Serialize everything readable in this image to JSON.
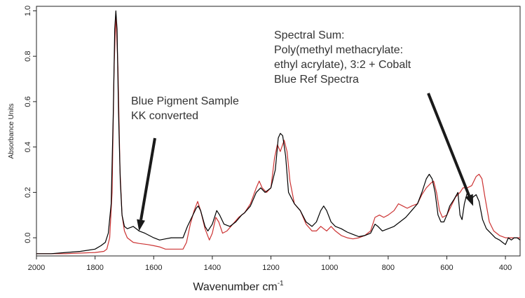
{
  "chart_data": {
    "type": "line",
    "xlabel": "Wavenumber cm",
    "xlabel_superscript": "-1",
    "ylabel": "Absorbance Units",
    "xlim": [
      2000,
      350
    ],
    "ylim": [
      -0.08,
      1.02
    ],
    "x_reversed": true,
    "grid": false,
    "x_ticks": [
      2000,
      1800,
      1600,
      1400,
      1200,
      1000,
      800,
      600,
      400
    ],
    "y_ticks": [
      0.0,
      0.2,
      0.4,
      0.6,
      0.8,
      1.0
    ],
    "x_tick_labels": [
      "2000",
      "1800",
      "1600",
      "1400",
      "1200",
      "1000",
      "800",
      "600",
      "400"
    ],
    "y_tick_labels": [
      "0.0",
      "0.2",
      "0.4",
      "0.6",
      "0.8",
      "1.0"
    ],
    "annotations": [
      {
        "lines": [
          "Blue Pigment Sample",
          "KK converted"
        ],
        "arrow_to": [
          1650,
          0.03
        ]
      },
      {
        "lines": [
          "Spectral Sum:",
          "Poly(methyl methacrylate:",
          "ethyl acrylate), 3:2 + Cobalt",
          "Blue Ref Spectra"
        ],
        "arrow_to": [
          510,
          0.14
        ]
      }
    ],
    "series": [
      {
        "color": "#000000",
        "points": [
          [
            2000,
            -0.07
          ],
          [
            1950,
            -0.07
          ],
          [
            1900,
            -0.065
          ],
          [
            1850,
            -0.06
          ],
          [
            1800,
            -0.05
          ],
          [
            1780,
            -0.035
          ],
          [
            1765,
            -0.02
          ],
          [
            1755,
            0.02
          ],
          [
            1745,
            0.15
          ],
          [
            1738,
            0.55
          ],
          [
            1733,
            0.92
          ],
          [
            1729,
            1.0
          ],
          [
            1725,
            0.92
          ],
          [
            1720,
            0.55
          ],
          [
            1714,
            0.25
          ],
          [
            1708,
            0.1
          ],
          [
            1700,
            0.05
          ],
          [
            1690,
            0.04
          ],
          [
            1670,
            0.05
          ],
          [
            1650,
            0.03
          ],
          [
            1630,
            0.02
          ],
          [
            1600,
            0.0
          ],
          [
            1580,
            -0.01
          ],
          [
            1560,
            -0.005
          ],
          [
            1540,
            0.0
          ],
          [
            1520,
            0.0
          ],
          [
            1500,
            0.0
          ],
          [
            1485,
            0.05
          ],
          [
            1470,
            0.09
          ],
          [
            1455,
            0.13
          ],
          [
            1448,
            0.14
          ],
          [
            1440,
            0.12
          ],
          [
            1425,
            0.05
          ],
          [
            1415,
            0.03
          ],
          [
            1400,
            0.06
          ],
          [
            1385,
            0.12
          ],
          [
            1375,
            0.1
          ],
          [
            1360,
            0.06
          ],
          [
            1340,
            0.05
          ],
          [
            1320,
            0.07
          ],
          [
            1300,
            0.1
          ],
          [
            1290,
            0.11
          ],
          [
            1270,
            0.14
          ],
          [
            1250,
            0.2
          ],
          [
            1235,
            0.22
          ],
          [
            1220,
            0.2
          ],
          [
            1200,
            0.22
          ],
          [
            1185,
            0.3
          ],
          [
            1175,
            0.44
          ],
          [
            1168,
            0.46
          ],
          [
            1160,
            0.45
          ],
          [
            1150,
            0.36
          ],
          [
            1140,
            0.2
          ],
          [
            1120,
            0.15
          ],
          [
            1100,
            0.12
          ],
          [
            1080,
            0.07
          ],
          [
            1060,
            0.05
          ],
          [
            1045,
            0.07
          ],
          [
            1030,
            0.12
          ],
          [
            1020,
            0.14
          ],
          [
            1010,
            0.12
          ],
          [
            995,
            0.07
          ],
          [
            980,
            0.05
          ],
          [
            960,
            0.04
          ],
          [
            940,
            0.025
          ],
          [
            920,
            0.015
          ],
          [
            900,
            0.005
          ],
          [
            880,
            0.01
          ],
          [
            860,
            0.02
          ],
          [
            845,
            0.06
          ],
          [
            835,
            0.05
          ],
          [
            820,
            0.03
          ],
          [
            800,
            0.04
          ],
          [
            780,
            0.05
          ],
          [
            760,
            0.07
          ],
          [
            740,
            0.09
          ],
          [
            720,
            0.12
          ],
          [
            700,
            0.15
          ],
          [
            685,
            0.2
          ],
          [
            670,
            0.26
          ],
          [
            660,
            0.28
          ],
          [
            650,
            0.26
          ],
          [
            640,
            0.2
          ],
          [
            630,
            0.1
          ],
          [
            620,
            0.07
          ],
          [
            610,
            0.07
          ],
          [
            600,
            0.1
          ],
          [
            590,
            0.14
          ],
          [
            575,
            0.17
          ],
          [
            562,
            0.2
          ],
          [
            555,
            0.1
          ],
          [
            548,
            0.08
          ],
          [
            540,
            0.15
          ],
          [
            530,
            0.2
          ],
          [
            520,
            0.16
          ],
          [
            510,
            0.18
          ],
          [
            500,
            0.19
          ],
          [
            490,
            0.16
          ],
          [
            478,
            0.08
          ],
          [
            465,
            0.04
          ],
          [
            450,
            0.02
          ],
          [
            435,
            0.0
          ],
          [
            420,
            -0.01
          ],
          [
            410,
            -0.02
          ],
          [
            400,
            -0.03
          ],
          [
            390,
            0.0
          ],
          [
            380,
            -0.01
          ],
          [
            370,
            0.0
          ],
          [
            360,
            0.0
          ],
          [
            350,
            -0.01
          ]
        ]
      },
      {
        "color": "#cc3333",
        "points": [
          [
            2000,
            -0.07
          ],
          [
            1900,
            -0.07
          ],
          [
            1800,
            -0.065
          ],
          [
            1770,
            -0.06
          ],
          [
            1760,
            -0.05
          ],
          [
            1750,
            0.0
          ],
          [
            1742,
            0.2
          ],
          [
            1735,
            0.75
          ],
          [
            1729,
            0.99
          ],
          [
            1722,
            0.75
          ],
          [
            1715,
            0.3
          ],
          [
            1708,
            0.1
          ],
          [
            1700,
            0.03
          ],
          [
            1690,
            0.0
          ],
          [
            1670,
            -0.02
          ],
          [
            1650,
            -0.025
          ],
          [
            1620,
            -0.03
          ],
          [
            1600,
            -0.035
          ],
          [
            1580,
            -0.04
          ],
          [
            1560,
            -0.05
          ],
          [
            1520,
            -0.05
          ],
          [
            1500,
            -0.05
          ],
          [
            1488,
            -0.02
          ],
          [
            1475,
            0.06
          ],
          [
            1462,
            0.12
          ],
          [
            1450,
            0.16
          ],
          [
            1440,
            0.12
          ],
          [
            1425,
            0.04
          ],
          [
            1410,
            -0.01
          ],
          [
            1400,
            0.02
          ],
          [
            1388,
            0.09
          ],
          [
            1378,
            0.07
          ],
          [
            1365,
            0.02
          ],
          [
            1350,
            0.03
          ],
          [
            1330,
            0.06
          ],
          [
            1310,
            0.09
          ],
          [
            1290,
            0.11
          ],
          [
            1270,
            0.15
          ],
          [
            1250,
            0.22
          ],
          [
            1240,
            0.25
          ],
          [
            1230,
            0.22
          ],
          [
            1215,
            0.2
          ],
          [
            1200,
            0.22
          ],
          [
            1188,
            0.35
          ],
          [
            1178,
            0.41
          ],
          [
            1168,
            0.38
          ],
          [
            1155,
            0.43
          ],
          [
            1145,
            0.38
          ],
          [
            1135,
            0.25
          ],
          [
            1120,
            0.15
          ],
          [
            1100,
            0.12
          ],
          [
            1080,
            0.06
          ],
          [
            1060,
            0.03
          ],
          [
            1045,
            0.03
          ],
          [
            1030,
            0.05
          ],
          [
            1020,
            0.04
          ],
          [
            1010,
            0.03
          ],
          [
            995,
            0.05
          ],
          [
            980,
            0.03
          ],
          [
            960,
            0.01
          ],
          [
            940,
            0.0
          ],
          [
            920,
            -0.005
          ],
          [
            900,
            0.0
          ],
          [
            880,
            0.01
          ],
          [
            860,
            0.03
          ],
          [
            845,
            0.09
          ],
          [
            830,
            0.1
          ],
          [
            815,
            0.09
          ],
          [
            800,
            0.1
          ],
          [
            780,
            0.12
          ],
          [
            765,
            0.15
          ],
          [
            750,
            0.14
          ],
          [
            735,
            0.13
          ],
          [
            720,
            0.14
          ],
          [
            700,
            0.15
          ],
          [
            685,
            0.19
          ],
          [
            670,
            0.22
          ],
          [
            655,
            0.24
          ],
          [
            645,
            0.25
          ],
          [
            635,
            0.2
          ],
          [
            625,
            0.12
          ],
          [
            615,
            0.09
          ],
          [
            600,
            0.1
          ],
          [
            585,
            0.14
          ],
          [
            570,
            0.18
          ],
          [
            555,
            0.2
          ],
          [
            545,
            0.22
          ],
          [
            530,
            0.22
          ],
          [
            515,
            0.23
          ],
          [
            500,
            0.27
          ],
          [
            490,
            0.28
          ],
          [
            480,
            0.26
          ],
          [
            470,
            0.18
          ],
          [
            455,
            0.07
          ],
          [
            440,
            0.03
          ],
          [
            420,
            0.01
          ],
          [
            400,
            0.0
          ],
          [
            380,
            0.0
          ],
          [
            360,
            0.0
          ],
          [
            350,
            0.0
          ]
        ]
      }
    ]
  }
}
